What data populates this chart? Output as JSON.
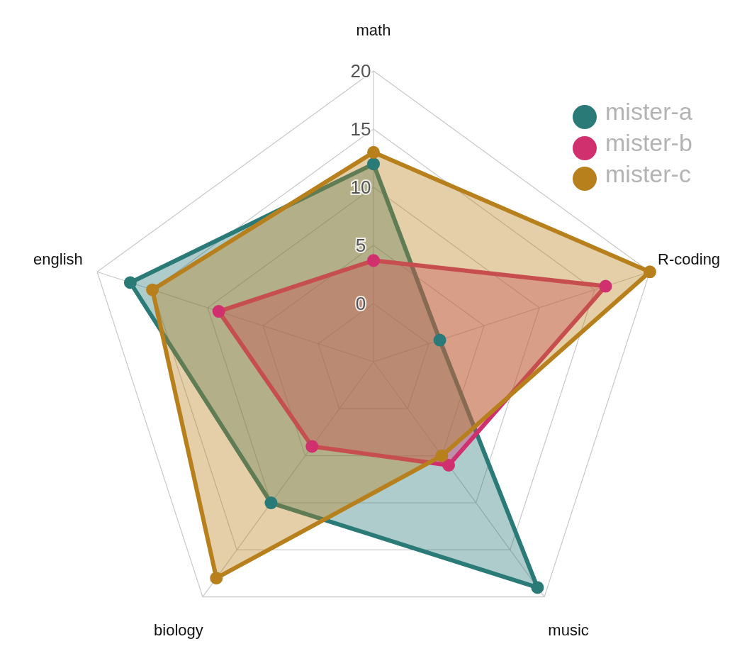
{
  "chart_data": {
    "type": "radar",
    "categories": [
      "math",
      "R-coding",
      "music",
      "biology",
      "english"
    ],
    "series": [
      {
        "name": "mister-a",
        "color": "#2a7a78",
        "values": [
          12,
          1,
          19,
          10,
          17
        ]
      },
      {
        "name": "mister-b",
        "color": "#d1306f",
        "values": [
          3.7,
          16,
          6,
          4,
          9
        ]
      },
      {
        "name": "mister-c",
        "color": "#b8801c",
        "values": [
          13,
          20,
          5,
          18,
          15
        ]
      }
    ],
    "ylim": [
      -5,
      20
    ],
    "yticks": [
      0,
      5,
      10,
      15,
      20
    ],
    "grid": true,
    "legend": "top right",
    "marker": "circle",
    "line_style": "solid"
  }
}
